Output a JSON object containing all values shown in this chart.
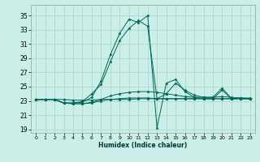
{
  "xlabel": "Humidex (Indice chaleur)",
  "bg_color": "#cceee8",
  "grid_color": "#aad8d0",
  "line_color": "#006655",
  "xlim": [
    -0.5,
    23.5
  ],
  "ylim": [
    18.5,
    36.5
  ],
  "yticks": [
    19,
    21,
    23,
    25,
    27,
    29,
    31,
    33,
    35
  ],
  "xticks": [
    0,
    1,
    2,
    3,
    4,
    5,
    6,
    7,
    8,
    9,
    10,
    11,
    12,
    13,
    14,
    15,
    16,
    17,
    18,
    19,
    20,
    21,
    22,
    23
  ],
  "series": [
    [
      23.2,
      23.2,
      23.2,
      23.2,
      23.1,
      23.1,
      23.1,
      23.2,
      23.2,
      23.2,
      23.2,
      23.3,
      23.3,
      23.3,
      23.3,
      23.3,
      23.3,
      23.3,
      23.3,
      23.3,
      23.3,
      23.3,
      23.3,
      23.3
    ],
    [
      23.2,
      23.2,
      23.2,
      22.7,
      22.6,
      22.6,
      22.7,
      23.0,
      23.2,
      23.3,
      23.4,
      23.4,
      23.4,
      23.3,
      23.3,
      23.3,
      23.3,
      23.3,
      23.3,
      23.3,
      23.3,
      23.3,
      23.3,
      23.3
    ],
    [
      23.2,
      23.2,
      23.2,
      22.7,
      22.6,
      22.6,
      22.8,
      23.2,
      23.7,
      24.0,
      24.2,
      24.3,
      24.3,
      24.2,
      24.0,
      23.8,
      23.6,
      23.5,
      23.5,
      23.5,
      23.6,
      23.5,
      23.4,
      23.4
    ],
    [
      23.2,
      23.2,
      23.2,
      22.7,
      22.7,
      22.9,
      24.0,
      25.3,
      28.5,
      31.5,
      33.2,
      34.3,
      33.5,
      23.3,
      24.0,
      25.5,
      24.5,
      23.8,
      23.5,
      23.5,
      24.8,
      23.3,
      23.4,
      23.3
    ],
    [
      23.2,
      23.2,
      23.2,
      22.7,
      22.7,
      22.8,
      23.5,
      25.8,
      29.5,
      32.5,
      34.5,
      34.0,
      35.0,
      19.2,
      25.5,
      26.0,
      24.3,
      23.5,
      23.3,
      23.3,
      24.5,
      23.3,
      23.3,
      23.3
    ]
  ]
}
